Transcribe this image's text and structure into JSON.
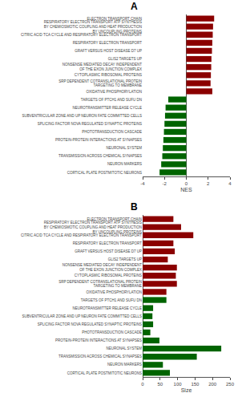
{
  "chart_data": [
    {
      "type": "bar",
      "title": "A",
      "orientation": "horizontal",
      "categories": [
        "ELECTRON TRANSPORT CHAIN",
        "RESPIRATORY ELECTRON TRANSPORT ATP SYNTHESIS\nBY CHEMIOSMOTIC COUPLING AND HEAT PRODUCTION\nBY UNCOUPLING PROTEINS",
        "CITRIC ACID TCA CYCLE AND RESPIRATORY ELECTRON TRANSPORT",
        "RESPIRATORY ELECTRON TRANSPORT",
        "GRAFT VERSUS HOST DISEASE D7 UP",
        "GLIS2 TARGETS UP",
        "NONSENSE MEDIATED DECAY INDEPENDENT\nOF THE EXON JUNCTION COMPLEX",
        "CYTOPLASMIC RIBOSOMAL PROTEINS",
        "SRP DEPENDENT COTRANSLATIONAL PROTEIN\nTARGETING TO MEMBRANE",
        "OXIDATIVE PHOSPHORYLATION",
        "TARGETS OF PTCH1 AND SUFU DN",
        "NEUROTRANSMITTER RELEASE CYCLE",
        "SUBVENTRICULAR ZONE AND UP NEURON FATE COMMITTED CELLS",
        "SPLICING FACTOR NOVA REGULATED SYNAPTIC PROTEINS",
        "PHOTOTRANSDUCTION CASCADE",
        "PROTEIN-PROTEIN INTERACTIONS AT SYNAPSES",
        "NEURONAL SYSTEM",
        "TRANSMISSION ACROSS CHEMICAL SYNAPSES",
        "NEURON MARKERS",
        "CORTICAL PLATE POSTMITOTIC NEURONS"
      ],
      "values": [
        2.55,
        2.45,
        2.42,
        2.38,
        2.35,
        2.3,
        2.28,
        2.25,
        2.22,
        2.38,
        -1.65,
        -1.9,
        -1.95,
        -2.0,
        -2.05,
        -2.1,
        -2.15,
        -2.2,
        -2.3,
        -2.45
      ],
      "colors": [
        "#8B0000",
        "#8B0000",
        "#8B0000",
        "#8B0000",
        "#8B0000",
        "#8B0000",
        "#8B0000",
        "#8B0000",
        "#8B0000",
        "#8B0000",
        "#006400",
        "#006400",
        "#006400",
        "#006400",
        "#006400",
        "#006400",
        "#006400",
        "#006400",
        "#006400",
        "#006400"
      ],
      "xlabel": "NES",
      "xlim": [
        -4,
        4
      ],
      "xticks": [
        -4,
        -2,
        0,
        2,
        4
      ],
      "grid": false
    },
    {
      "type": "bar",
      "title": "B",
      "orientation": "horizontal",
      "categories": [
        "ELECTRON TRANSPORT CHAIN",
        "RESPIRATORY ELECTRON TRANSPORT ATP SYNTHESIS\nBY CHEMIOSMOTIC COUPLING AND HEAT PRODUCTION\nBY UNCOUPLING PROTEINS",
        "CITRIC ACID TCA CYCLE AND RESPIRATORY ELECTRON TRANSPORT",
        "RESPIRATORY ELECTRON TRANSPORT",
        "GRAFT VERSUS HOST DISEASE D7 UP",
        "GLIS2 TARGETS UP",
        "NONSENSE MEDIATED DECAY INDEPENDENT\nOF THE EXON JUNCTION COMPLEX",
        "CYTOPLASMIC RIBOSOMAL PROTEINS",
        "SRP DEPENDENT COTRANSLATIONAL PROTEIN\nTARGETING TO MEMBRANE",
        "OXIDATIVE PHOSPHORYLATION",
        "TARGETS OF PTCH1 AND SUFU DN",
        "NEUROTRANSMITTER RELEASE CYCLE",
        "SUBVENTRICULAR ZONE AND UP NEURON FATE COMMITTED CELLS",
        "SPLICING FACTOR NOVA REGULATED SYNAPTIC PROTEINS",
        "PHOTOTRANSDUCTION CASCADE",
        "PROTEIN-PROTEIN INTERACTIONS AT SYNAPSES",
        "NEURONAL SYSTEM",
        "TRANSMISSION ACROSS CHEMICAL SYNAPSES",
        "NEURON MARKERS",
        "CORTICAL PLATE POSTMITOTIC NEURONS"
      ],
      "values": [
        88,
        110,
        145,
        88,
        92,
        72,
        98,
        95,
        98,
        68,
        68,
        30,
        28,
        30,
        22,
        48,
        225,
        155,
        58,
        78
      ],
      "colors": [
        "#8B0000",
        "#8B0000",
        "#8B0000",
        "#8B0000",
        "#8B0000",
        "#8B0000",
        "#8B0000",
        "#8B0000",
        "#8B0000",
        "#8B0000",
        "#006400",
        "#006400",
        "#006400",
        "#006400",
        "#006400",
        "#006400",
        "#006400",
        "#006400",
        "#006400",
        "#006400"
      ],
      "xlabel": "Size",
      "xlim": [
        0,
        250
      ],
      "xticks": [
        0,
        50,
        100,
        150,
        200,
        250
      ],
      "grid": false
    }
  ]
}
